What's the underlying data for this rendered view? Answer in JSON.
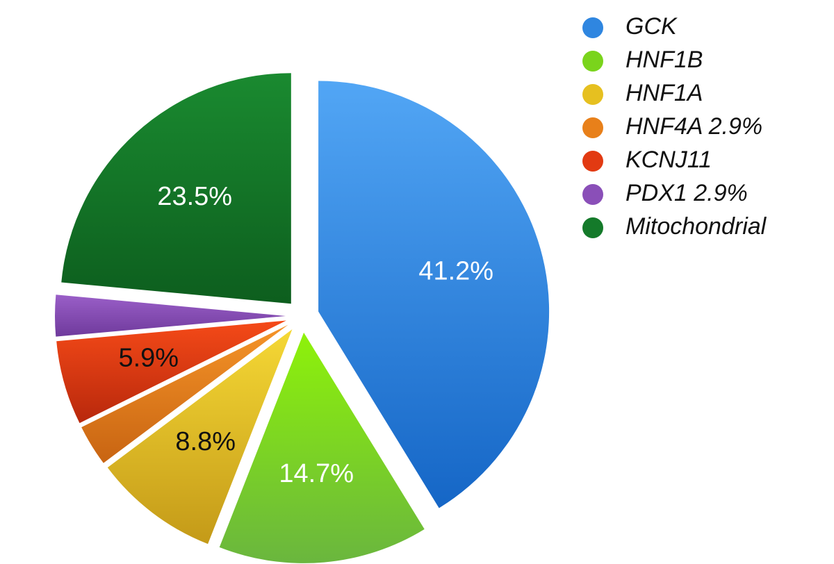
{
  "chart_data": {
    "type": "pie",
    "title": "",
    "slices": [
      {
        "label": "GCK",
        "legend": "GCK",
        "value": 41.2,
        "value_label": "41.2%",
        "color": "#2f86e0",
        "color_light": "#52a6f5",
        "color_dark": "#1566c6",
        "label_color": "#ffffff"
      },
      {
        "label": "HNF1B",
        "legend": "HNF1B",
        "value": 14.7,
        "value_label": "14.7%",
        "color": "#7ad41c",
        "color_light": "#8ef20a",
        "color_dark": "#6ab63e",
        "label_color": "#ffffff"
      },
      {
        "label": "HNF1A",
        "legend": "HNF1A",
        "value": 8.8,
        "value_label": "8.8%",
        "color": "#e6c020",
        "color_light": "#f5d835",
        "color_dark": "#c49a18",
        "label_color": "#111111"
      },
      {
        "label": "HNF4A",
        "legend": "HNF4A 2.9%",
        "value": 2.9,
        "value_label": "",
        "color": "#e8801a",
        "color_light": "#f59428",
        "color_dark": "#c86412",
        "label_color": "#111111"
      },
      {
        "label": "KCNJ11",
        "legend": "KCNJ11",
        "value": 5.9,
        "value_label": "5.9%",
        "color": "#e23a12",
        "color_light": "#f54a18",
        "color_dark": "#b8280c",
        "label_color": "#111111"
      },
      {
        "label": "PDX1",
        "legend": "PDX1 2.9%",
        "value": 2.9,
        "value_label": "",
        "color": "#8a4fb8",
        "color_light": "#9a5fc8",
        "color_dark": "#6f3a9c",
        "label_color": "#ffffff"
      },
      {
        "label": "Mitochondrial",
        "legend": "Mitochondrial",
        "value": 23.5,
        "value_label": "23.5%",
        "color": "#147a2a",
        "color_light": "#1a8a30",
        "color_dark": "#0d5e1e",
        "label_color": "#ffffff"
      }
    ],
    "legend_position": "top-right"
  }
}
